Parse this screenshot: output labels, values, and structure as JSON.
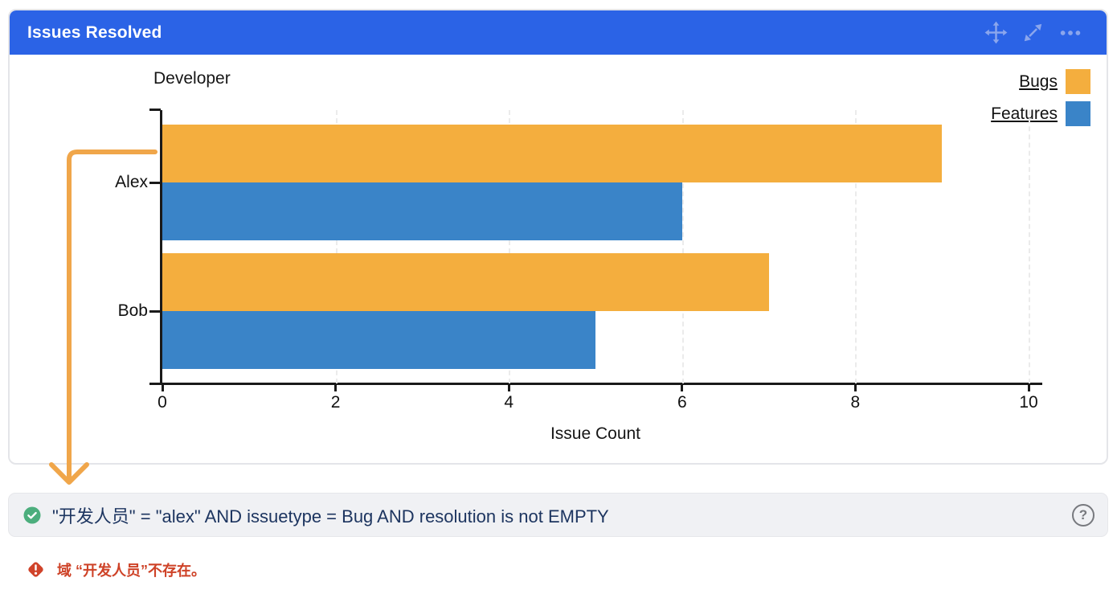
{
  "widget": {
    "title": "Issues Resolved",
    "header_color": "#2B63E6",
    "toolbar_icons": [
      "move-icon",
      "expand-icon",
      "more-options-icon"
    ]
  },
  "chart_data": {
    "type": "bar",
    "orientation": "horizontal",
    "title": "",
    "categories": [
      "Alex",
      "Bob"
    ],
    "series": [
      {
        "name": "Bugs",
        "color": "#F4AE3E",
        "values": [
          9,
          7
        ]
      },
      {
        "name": "Features",
        "color": "#3A84C8",
        "values": [
          6,
          5
        ]
      }
    ],
    "xlabel": "Issue Count",
    "ylabel": "Developer",
    "xlim": [
      0,
      10
    ],
    "xticks": [
      0,
      2,
      4,
      6,
      8,
      10
    ],
    "grid": true,
    "legend_position": "top-right",
    "legend_underlined": true
  },
  "annotation": {
    "arrow_color": "#F0A64A"
  },
  "query_bar": {
    "status": "valid",
    "status_icon": "check-circle-icon",
    "status_color": "#4CAE7D",
    "query": "\"开发人员\" = \"alex\" AND issuetype = Bug AND resolution is not EMPTY",
    "help_glyph": "?"
  },
  "error": {
    "icon": "error-diamond-icon",
    "message": "域 “开发人员”不存在。",
    "color": "#CE4227"
  }
}
